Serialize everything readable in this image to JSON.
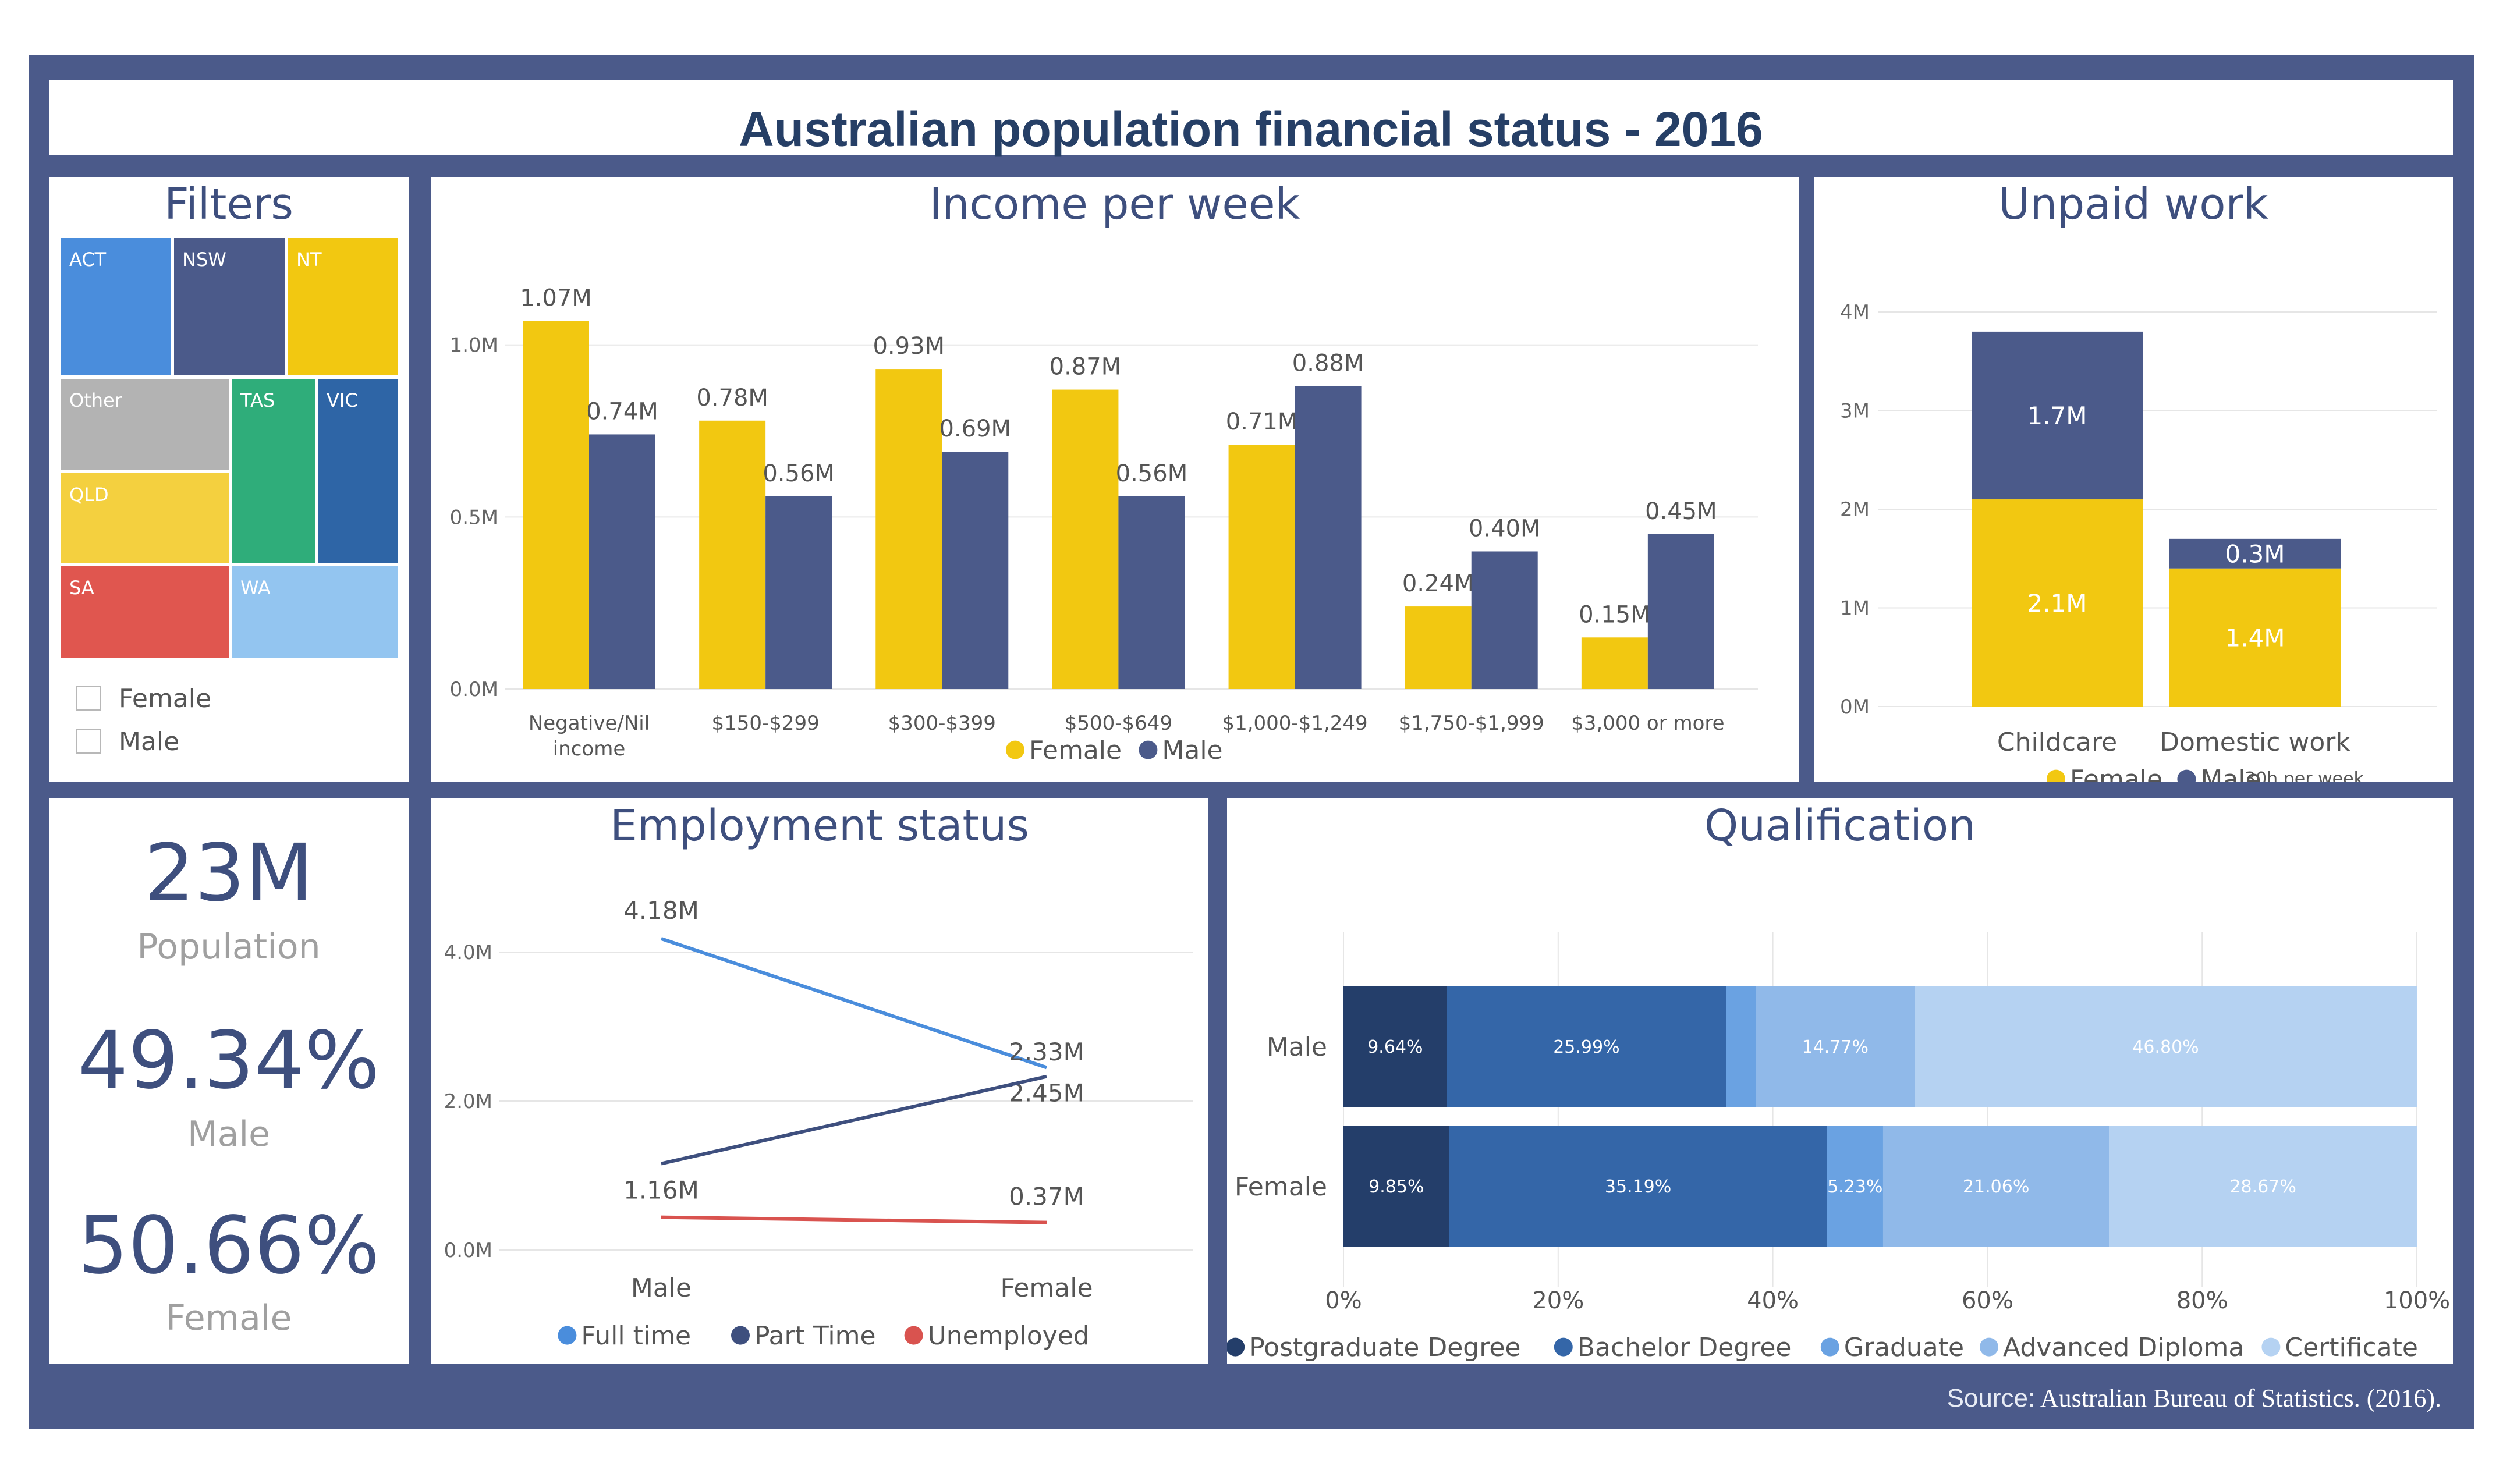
{
  "title": "Australian population financial status - 2016",
  "source": {
    "prefix": "Source:",
    "text": "Australian Bureau of Statistics. (2016)."
  },
  "colors": {
    "frame": "#4b5a8a",
    "female": "#f2c811",
    "male": "#4b5a8a",
    "title": "#263f66"
  },
  "filters": {
    "title": "Filters",
    "states": [
      {
        "label": "ACT",
        "color": "#4a8ddc"
      },
      {
        "label": "NSW",
        "color": "#4b5a8a"
      },
      {
        "label": "NT",
        "color": "#f2c811"
      },
      {
        "label": "Other",
        "color": "#b3b3b3"
      },
      {
        "label": "TAS",
        "color": "#2fad7a"
      },
      {
        "label": "VIC",
        "color": "#2e65a6"
      },
      {
        "label": "QLD",
        "color": "#f4d03f"
      },
      {
        "label": "SA",
        "color": "#e0564f"
      },
      {
        "label": "WA",
        "color": "#93c5f0"
      }
    ],
    "checkboxes": [
      {
        "label": "Female",
        "checked": false
      },
      {
        "label": "Male",
        "checked": false
      }
    ]
  },
  "kpis": [
    {
      "value": "23M",
      "label": "Population"
    },
    {
      "value": "49.34%",
      "label": "Male"
    },
    {
      "value": "50.66%",
      "label": "Female"
    }
  ],
  "chart_data": [
    {
      "id": "income",
      "type": "bar",
      "title": "Income per week",
      "categories": [
        "Negative/Nil income",
        "$150-$299",
        "$300-$399",
        "$500-$649",
        "$1,000-$1,249",
        "$1,750-$1,999",
        "$3,000 or more"
      ],
      "series": [
        {
          "name": "Female",
          "color": "#f2c811",
          "values": [
            1.07,
            0.78,
            0.93,
            0.87,
            0.71,
            0.24,
            0.15
          ],
          "labels": [
            "1.07M",
            "0.78M",
            "0.93M",
            "0.87M",
            "0.71M",
            "0.24M",
            "0.15M"
          ]
        },
        {
          "name": "Male",
          "color": "#4b5a8a",
          "values": [
            0.74,
            0.56,
            0.69,
            0.56,
            0.88,
            0.4,
            0.45
          ],
          "labels": [
            "0.74M",
            "0.56M",
            "0.69M",
            "0.56M",
            "0.88M",
            "0.40M",
            "0.45M"
          ]
        }
      ],
      "yticks": [
        "0.0M",
        "0.5M",
        "1.0M"
      ],
      "ylim": [
        0,
        1.15
      ],
      "grid": true,
      "legend": "bottom-center"
    },
    {
      "id": "unpaid",
      "type": "bar",
      "stacked": true,
      "title": "Unpaid work",
      "categories": [
        "Childcare",
        "Domestic work"
      ],
      "series": [
        {
          "name": "Female",
          "color": "#f2c811",
          "values": [
            2.1,
            1.4
          ],
          "labels": [
            "2.1M",
            "1.4M"
          ]
        },
        {
          "name": "Male",
          "color": "#4b5a8a",
          "values": [
            1.7,
            0.3
          ],
          "labels": [
            "1.7M",
            "0.3M"
          ]
        }
      ],
      "yticks": [
        "0M",
        "1M",
        "2M",
        "3M",
        "4M"
      ],
      "ylim": [
        0,
        4
      ],
      "annotation": "30h per week",
      "grid": true,
      "legend": "bottom-center"
    },
    {
      "id": "employment",
      "type": "line",
      "title": "Employment status",
      "categories": [
        "Male",
        "Female"
      ],
      "series": [
        {
          "name": "Full time",
          "color": "#4a8ddc",
          "values": [
            4.18,
            2.45
          ],
          "labels": [
            "4.18M",
            "2.45M"
          ]
        },
        {
          "name": "Part Time",
          "color": "#3e4f7e",
          "values": [
            1.16,
            2.33
          ],
          "labels": [
            "1.16M",
            "2.33M"
          ]
        },
        {
          "name": "Unemployed",
          "color": "#d9534f",
          "values": [
            0.44,
            0.37
          ],
          "labels": [
            "",
            "0.37M"
          ]
        }
      ],
      "yticks": [
        "0.0M",
        "2.0M",
        "4.0M"
      ],
      "ylim": [
        0,
        4.6
      ],
      "grid": true,
      "legend": "bottom-center"
    },
    {
      "id": "qualification",
      "type": "bar",
      "orientation": "horizontal",
      "stacked": "percent",
      "title": "Qualification",
      "categories": [
        "Male",
        "Female"
      ],
      "series": [
        {
          "name": "Postgraduate Degree",
          "color": "#243e6a",
          "values": [
            9.64,
            9.85
          ],
          "labels": [
            "9.64%",
            "9.85%"
          ]
        },
        {
          "name": "Bachelor Degree",
          "color": "#3466a8",
          "values": [
            25.99,
            35.19
          ],
          "labels": [
            "25.99%",
            "35.19%"
          ]
        },
        {
          "name": "Graduate",
          "color": "#6aa2e2",
          "values": [
            2.8,
            5.23
          ],
          "labels": [
            "",
            "5.23%"
          ]
        },
        {
          "name": "Advanced Diploma",
          "color": "#90b9e9",
          "values": [
            14.77,
            21.06
          ],
          "labels": [
            "14.77%",
            "21.06%"
          ]
        },
        {
          "name": "Certificate",
          "color": "#b5d2f2",
          "values": [
            46.8,
            28.67
          ],
          "labels": [
            "46.80%",
            "28.67%"
          ]
        }
      ],
      "xticks": [
        "0%",
        "20%",
        "40%",
        "60%",
        "80%",
        "100%"
      ],
      "xlim": [
        0,
        100
      ],
      "grid": true,
      "legend": "bottom-center"
    }
  ]
}
